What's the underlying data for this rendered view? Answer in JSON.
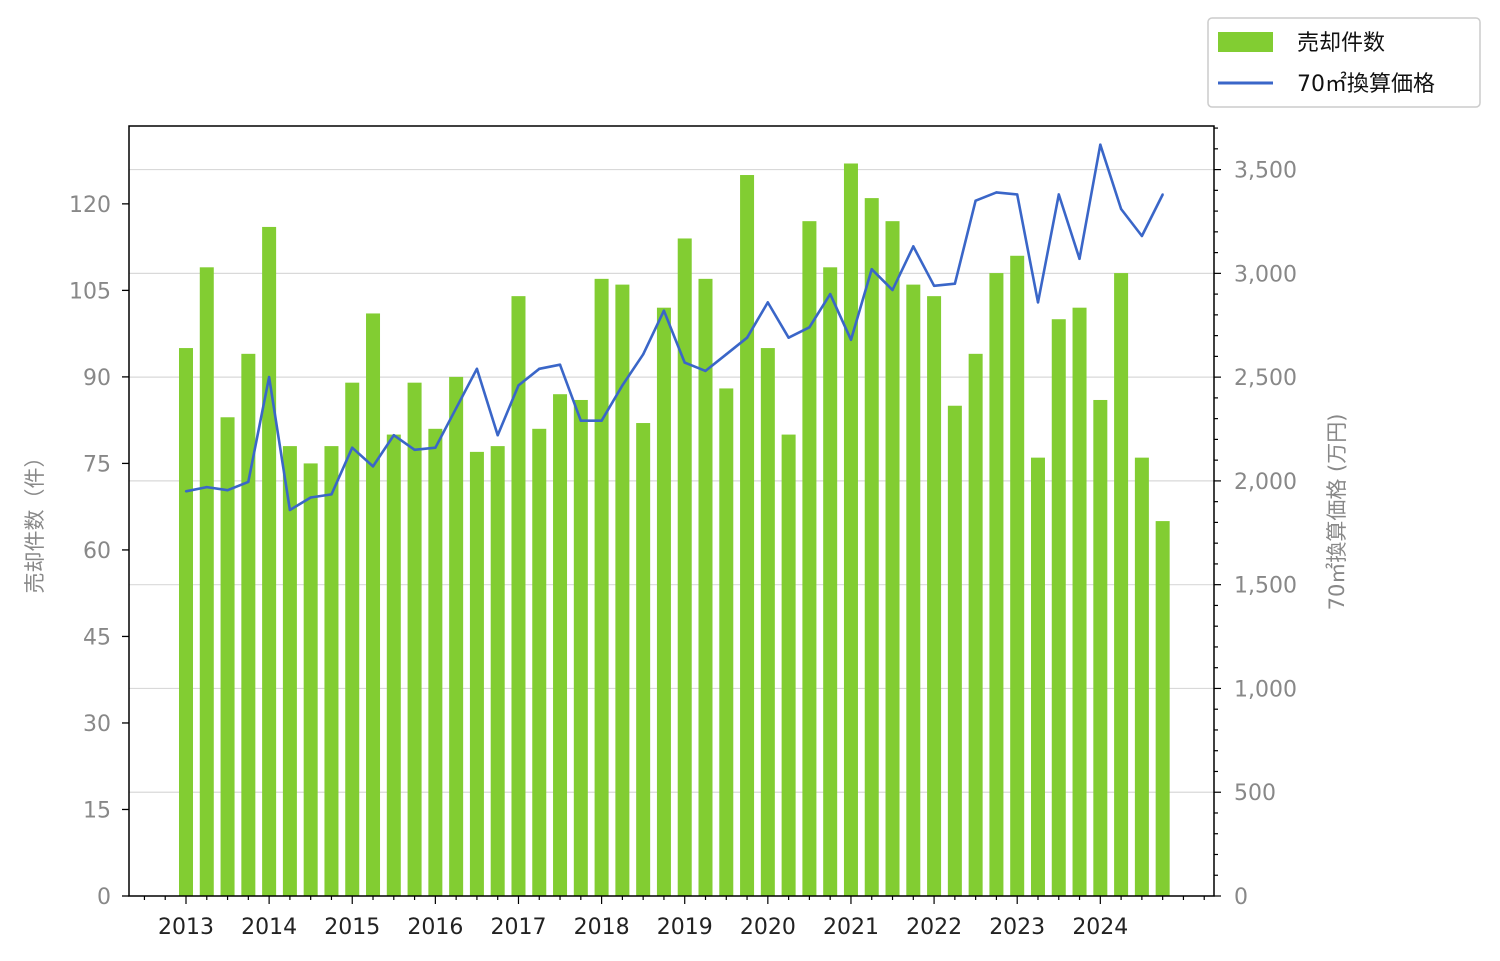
{
  "chart_data": {
    "type": "bar+line",
    "title": "",
    "x": [
      "2013Q1",
      "2013Q2",
      "2013Q3",
      "2013Q4",
      "2014Q1",
      "2014Q2",
      "2014Q3",
      "2014Q4",
      "2015Q1",
      "2015Q2",
      "2015Q3",
      "2015Q4",
      "2016Q1",
      "2016Q2",
      "2016Q3",
      "2016Q4",
      "2017Q1",
      "2017Q2",
      "2017Q3",
      "2017Q4",
      "2018Q1",
      "2018Q2",
      "2018Q3",
      "2018Q4",
      "2019Q1",
      "2019Q2",
      "2019Q3",
      "2019Q4",
      "2020Q1",
      "2020Q2",
      "2020Q3",
      "2020Q4",
      "2021Q1",
      "2021Q2",
      "2021Q3",
      "2021Q4",
      "2022Q1",
      "2022Q2",
      "2022Q3",
      "2022Q4",
      "2023Q1",
      "2023Q2",
      "2023Q3",
      "2023Q4",
      "2024Q1",
      "2024Q2",
      "2024Q3",
      "2024Q4"
    ],
    "year_ticks": [
      "2013",
      "2014",
      "2015",
      "2016",
      "2017",
      "2018",
      "2019",
      "2020",
      "2021",
      "2022",
      "2023",
      "2024"
    ],
    "series": [
      {
        "name": "売却件数",
        "kind": "bar",
        "axis": "left",
        "color": "#82cd32",
        "values": [
          95,
          109,
          83,
          94,
          116,
          78,
          75,
          78,
          89,
          101,
          80,
          89,
          81,
          90,
          77,
          78,
          104,
          81,
          87,
          86,
          107,
          106,
          82,
          102,
          114,
          107,
          88,
          125,
          95,
          80,
          117,
          109,
          127,
          121,
          117,
          106,
          104,
          85,
          94,
          108,
          111,
          76,
          100,
          102,
          86,
          108,
          76,
          65
        ]
      },
      {
        "name": "70㎡換算価格",
        "kind": "line",
        "axis": "right",
        "color": "#3a66c8",
        "values": [
          1950,
          1970,
          1955,
          1995,
          2500,
          1860,
          1920,
          1935,
          2160,
          2070,
          2220,
          2150,
          2160,
          2350,
          2540,
          2220,
          2460,
          2540,
          2560,
          2290,
          2290,
          2460,
          2610,
          2820,
          2570,
          2530,
          2610,
          2690,
          2860,
          2690,
          2740,
          2900,
          2680,
          3020,
          2920,
          3130,
          2940,
          2950,
          3350,
          3390,
          3380,
          2860,
          3380,
          3070,
          3620,
          3310,
          3180,
          3380
        ]
      }
    ],
    "ylabel_left": "売却件数（件）",
    "ylabel_right": "70㎡換算価格 (万円)",
    "ylim_left": [
      0,
      133.5
    ],
    "ylim_right": [
      0,
      3710
    ],
    "yticks_left": [
      "0",
      "15",
      "30",
      "45",
      "60",
      "75",
      "90",
      "105",
      "120"
    ],
    "yticks_right": [
      "0",
      "500",
      "1,000",
      "1,500",
      "2,000",
      "2,500",
      "3,000",
      "3,500"
    ],
    "grid": "horizontal on right axis major ticks",
    "legend": "top-right, outside plot"
  },
  "legend": {
    "bar_label": "売却件数",
    "line_label": "70㎡換算価格"
  },
  "colors": {
    "bar": "#82cd32",
    "line": "#3a66c8",
    "grid": "#d9d9d9",
    "tick_text": "#888888"
  }
}
